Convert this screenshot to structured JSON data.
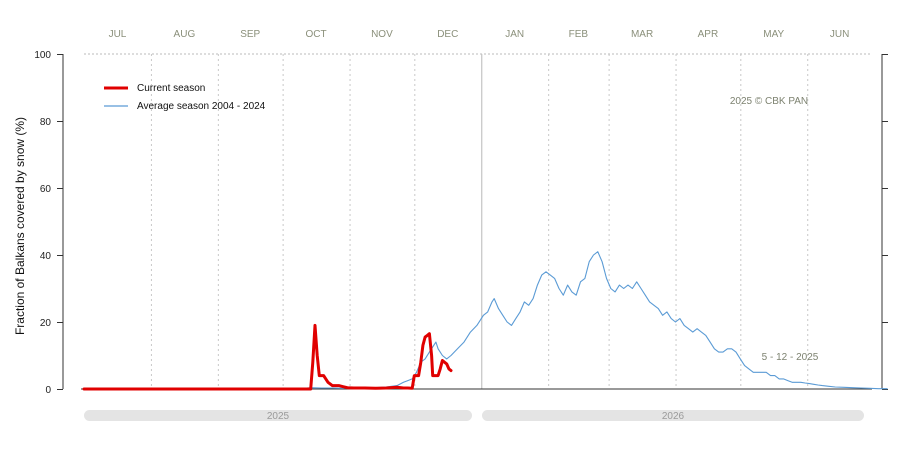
{
  "chart_data": {
    "type": "line",
    "title": "",
    "ylabel": "Fraction of  Balkans  covered by snow (%)",
    "ylim": [
      0,
      100
    ],
    "yticks": [
      0,
      20,
      40,
      60,
      80,
      100
    ],
    "months": [
      "JUL",
      "AUG",
      "SEP",
      "OCT",
      "NOV",
      "DEC",
      "JAN",
      "FEB",
      "MAR",
      "APR",
      "MAY",
      "JUN"
    ],
    "years": [
      "2025",
      "2026"
    ],
    "credit": "2025  © CBK PAN",
    "date_label": "5 - 12 - 2025",
    "grid": true,
    "legend_position": "top-left",
    "x_unit": "days since 1 July 2025",
    "series": [
      {
        "name": "Current season",
        "color": "#e00000",
        "points": [
          [
            0,
            0
          ],
          [
            10,
            0
          ],
          [
            20,
            0
          ],
          [
            30,
            0
          ],
          [
            40,
            0
          ],
          [
            50,
            0
          ],
          [
            60,
            0
          ],
          [
            70,
            0
          ],
          [
            80,
            0
          ],
          [
            90,
            0
          ],
          [
            100,
            0
          ],
          [
            105,
            0
          ],
          [
            106,
            8
          ],
          [
            107,
            19
          ],
          [
            108,
            10
          ],
          [
            109,
            4
          ],
          [
            111,
            4
          ],
          [
            113,
            2
          ],
          [
            115,
            1
          ],
          [
            118,
            1
          ],
          [
            120,
            0.7
          ],
          [
            122,
            0.4
          ],
          [
            125,
            0.3
          ],
          [
            130,
            0.3
          ],
          [
            135,
            0.2
          ],
          [
            140,
            0.3
          ],
          [
            145,
            0.5
          ],
          [
            148,
            0.3
          ],
          [
            150,
            0.3
          ],
          [
            152,
            0.2
          ],
          [
            153,
            4
          ],
          [
            154,
            4
          ],
          [
            155,
            4
          ],
          [
            156,
            8
          ],
          [
            157,
            13
          ],
          [
            158,
            15.5
          ],
          [
            159,
            16
          ],
          [
            160,
            16.5
          ],
          [
            161,
            10
          ],
          [
            161.5,
            4
          ],
          [
            162,
            4
          ],
          [
            163,
            4
          ],
          [
            164,
            4
          ],
          [
            165,
            6
          ],
          [
            166,
            8.5
          ],
          [
            167,
            8
          ],
          [
            168,
            7.5
          ],
          [
            169,
            6
          ],
          [
            170,
            5.5
          ]
        ]
      },
      {
        "name": "Average season 2004 - 2024",
        "color": "#5b9bd5",
        "points": [
          [
            0,
            0
          ],
          [
            20,
            0
          ],
          [
            40,
            0
          ],
          [
            60,
            0
          ],
          [
            80,
            0
          ],
          [
            100,
            0.1
          ],
          [
            105,
            0.4
          ],
          [
            110,
            0.3
          ],
          [
            115,
            0.3
          ],
          [
            120,
            0.2
          ],
          [
            125,
            0.5
          ],
          [
            130,
            0.3
          ],
          [
            135,
            0.4
          ],
          [
            140,
            0.6
          ],
          [
            145,
            1
          ],
          [
            148,
            2
          ],
          [
            150,
            2.5
          ],
          [
            152,
            3
          ],
          [
            154,
            5
          ],
          [
            156,
            8
          ],
          [
            158,
            9
          ],
          [
            160,
            11
          ],
          [
            162,
            13
          ],
          [
            163,
            14
          ],
          [
            164,
            12
          ],
          [
            165,
            11
          ],
          [
            166,
            10
          ],
          [
            168,
            9
          ],
          [
            170,
            10
          ],
          [
            173,
            12
          ],
          [
            176,
            14
          ],
          [
            179,
            17
          ],
          [
            182,
            19
          ],
          [
            185,
            22
          ],
          [
            187,
            23
          ],
          [
            189,
            26
          ],
          [
            190,
            27
          ],
          [
            192,
            24
          ],
          [
            194,
            22
          ],
          [
            196,
            20
          ],
          [
            198,
            19
          ],
          [
            200,
            21
          ],
          [
            202,
            23
          ],
          [
            204,
            26
          ],
          [
            206,
            25
          ],
          [
            208,
            27
          ],
          [
            210,
            31
          ],
          [
            212,
            34
          ],
          [
            214,
            35
          ],
          [
            216,
            34
          ],
          [
            218,
            33
          ],
          [
            220,
            30
          ],
          [
            222,
            28
          ],
          [
            224,
            31
          ],
          [
            226,
            29
          ],
          [
            228,
            28
          ],
          [
            230,
            32
          ],
          [
            232,
            33
          ],
          [
            234,
            38
          ],
          [
            236,
            40
          ],
          [
            238,
            41
          ],
          [
            240,
            38
          ],
          [
            242,
            33
          ],
          [
            244,
            30
          ],
          [
            246,
            29
          ],
          [
            248,
            31
          ],
          [
            250,
            30
          ],
          [
            252,
            31
          ],
          [
            254,
            30
          ],
          [
            256,
            32
          ],
          [
            258,
            30
          ],
          [
            260,
            28
          ],
          [
            262,
            26
          ],
          [
            264,
            25
          ],
          [
            266,
            24
          ],
          [
            268,
            22
          ],
          [
            270,
            23
          ],
          [
            272,
            21
          ],
          [
            274,
            20
          ],
          [
            276,
            21
          ],
          [
            278,
            19
          ],
          [
            280,
            18
          ],
          [
            282,
            17
          ],
          [
            284,
            18
          ],
          [
            286,
            17
          ],
          [
            288,
            16
          ],
          [
            290,
            14
          ],
          [
            292,
            12
          ],
          [
            294,
            11
          ],
          [
            296,
            11
          ],
          [
            298,
            12
          ],
          [
            300,
            12
          ],
          [
            302,
            11
          ],
          [
            304,
            9
          ],
          [
            306,
            7
          ],
          [
            308,
            6
          ],
          [
            310,
            5
          ],
          [
            312,
            5
          ],
          [
            314,
            5
          ],
          [
            316,
            5
          ],
          [
            318,
            4
          ],
          [
            320,
            4
          ],
          [
            322,
            3
          ],
          [
            324,
            3
          ],
          [
            326,
            2.5
          ],
          [
            328,
            2
          ],
          [
            330,
            2
          ],
          [
            332,
            2
          ],
          [
            334,
            1.8
          ],
          [
            336,
            1.6
          ],
          [
            338,
            1.4
          ],
          [
            340,
            1.2
          ],
          [
            342,
            1
          ],
          [
            345,
            0.8
          ],
          [
            348,
            0.6
          ],
          [
            352,
            0.5
          ],
          [
            356,
            0.4
          ],
          [
            360,
            0.3
          ],
          [
            364,
            0.2
          ],
          [
            368,
            0.1
          ],
          [
            372,
            0.1
          ]
        ]
      }
    ]
  }
}
